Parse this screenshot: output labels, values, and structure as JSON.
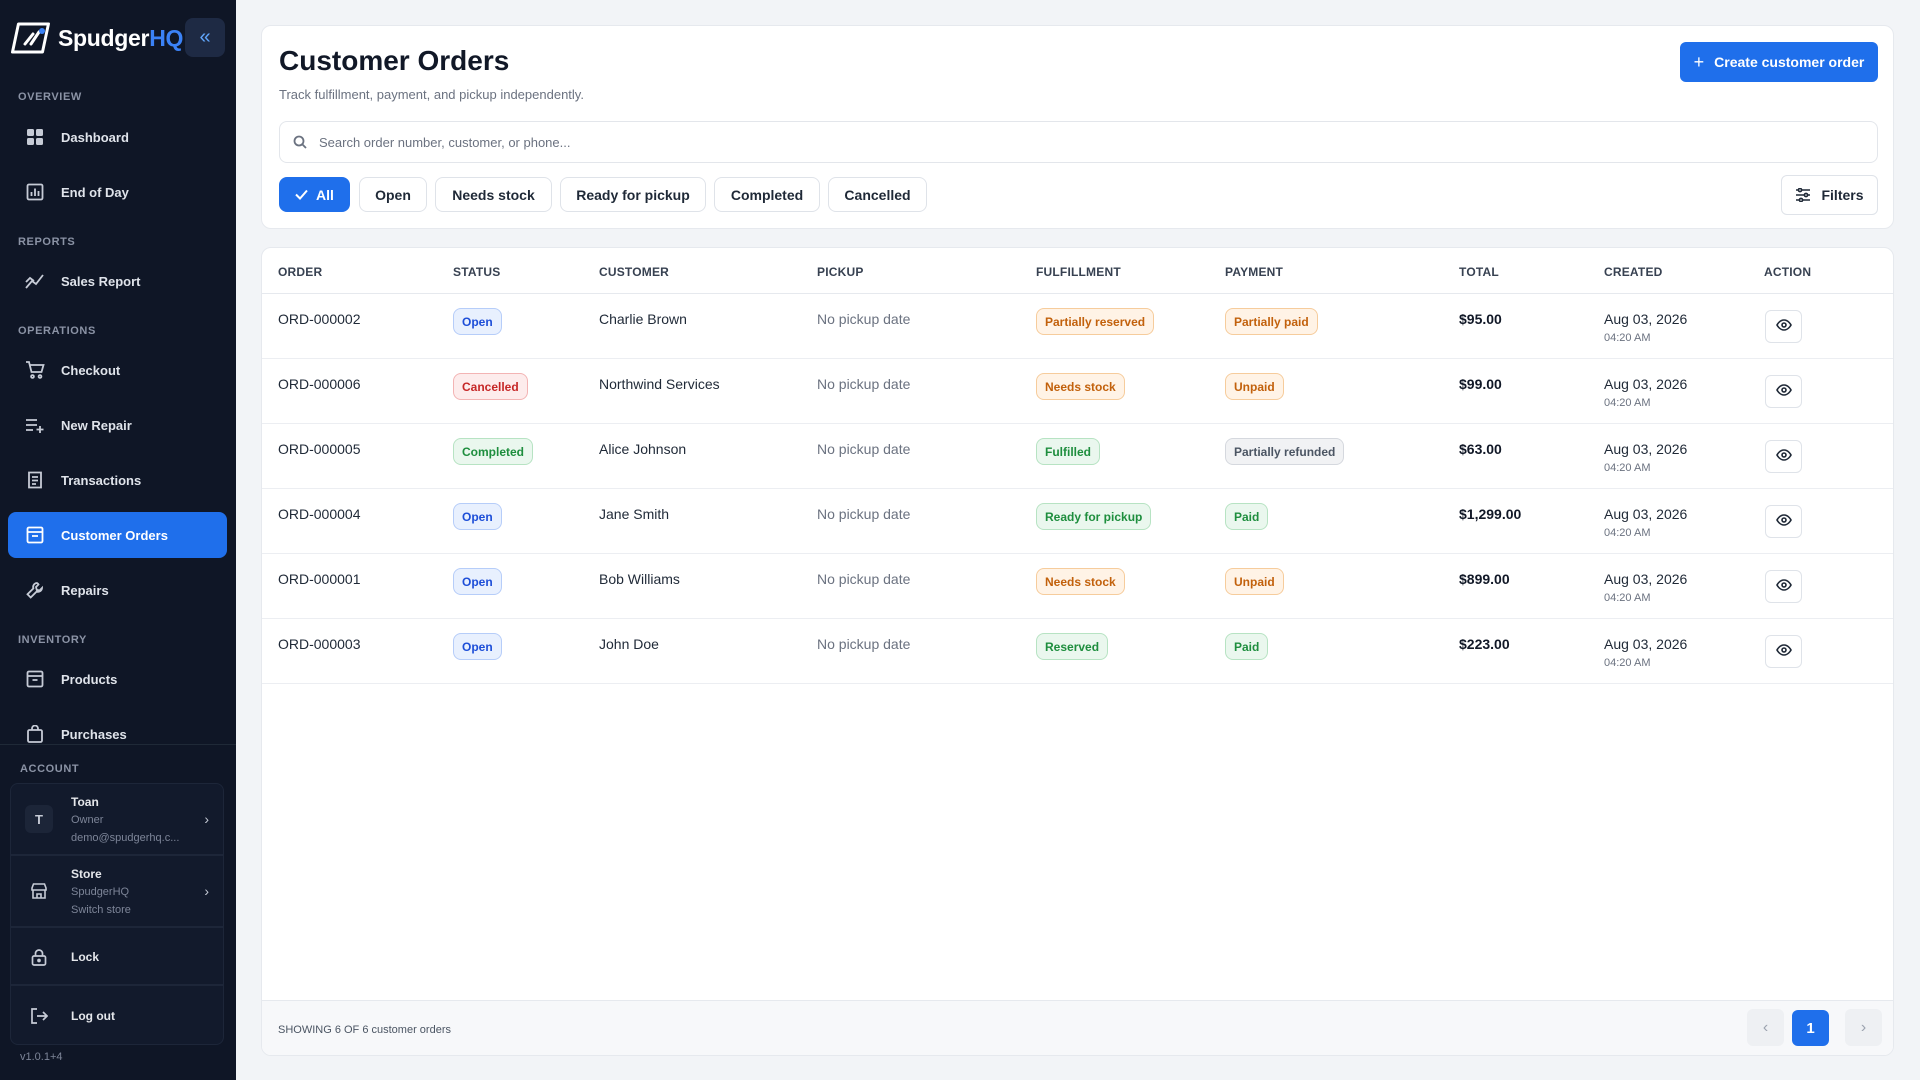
{
  "brand": {
    "name_main": "Spudger",
    "name_accent": "HQ"
  },
  "sidebar": {
    "sections": {
      "overview": "OVERVIEW",
      "reports": "REPORTS",
      "operations": "OPERATIONS",
      "inventory": "INVENTORY",
      "account": "ACCOUNT"
    },
    "items": [
      {
        "label": "Dashboard",
        "icon": "dashboard-icon"
      },
      {
        "label": "End of Day",
        "icon": "chart-icon"
      },
      {
        "label": "Sales Report",
        "icon": "trend-icon"
      },
      {
        "label": "Checkout",
        "icon": "cart-icon"
      },
      {
        "label": "New Repair",
        "icon": "list-plus-icon"
      },
      {
        "label": "Transactions",
        "icon": "receipt-icon"
      },
      {
        "label": "Customer Orders",
        "icon": "orders-icon",
        "active": true
      },
      {
        "label": "Repairs",
        "icon": "wrench-icon"
      },
      {
        "label": "Products",
        "icon": "box-icon"
      },
      {
        "label": "Purchases",
        "icon": "bag-icon"
      }
    ],
    "account": {
      "user": {
        "initial": "T",
        "name": "Toan",
        "role": "Owner",
        "email": "demo@spudgerhq.c..."
      },
      "store": {
        "title": "Store",
        "name": "SpudgerHQ",
        "action": "Switch store"
      },
      "lock": "Lock",
      "logout": "Log out"
    },
    "version": "v1.0.1+4"
  },
  "header": {
    "title": "Customer Orders",
    "subtitle": "Track fulfillment, payment, and pickup independently.",
    "create_label": "Create customer order",
    "search_placeholder": "Search order number, customer, or phone...",
    "filters_label": "Filters",
    "chips": [
      "All",
      "Open",
      "Needs stock",
      "Ready for pickup",
      "Completed",
      "Cancelled"
    ],
    "active_chip": "All"
  },
  "table": {
    "columns": [
      "ORDER",
      "STATUS",
      "CUSTOMER",
      "PICKUP",
      "FULFILLMENT",
      "PAYMENT",
      "TOTAL",
      "CREATED",
      "ACTION"
    ],
    "rows": [
      {
        "order": "ORD-000002",
        "status": "Open",
        "customer": "Charlie Brown",
        "pickup": "No pickup date",
        "fulfillment": "Partially reserved",
        "payment": "Partially paid",
        "total": "$95.00",
        "created_date": "Aug 03, 2026",
        "created_time": "04:20 AM"
      },
      {
        "order": "ORD-000006",
        "status": "Cancelled",
        "customer": "Northwind Services",
        "pickup": "No pickup date",
        "fulfillment": "Needs stock",
        "payment": "Unpaid",
        "total": "$99.00",
        "created_date": "Aug 03, 2026",
        "created_time": "04:20 AM"
      },
      {
        "order": "ORD-000005",
        "status": "Completed",
        "customer": "Alice Johnson",
        "pickup": "No pickup date",
        "fulfillment": "Fulfilled",
        "payment": "Partially refunded",
        "total": "$63.00",
        "created_date": "Aug 03, 2026",
        "created_time": "04:20 AM"
      },
      {
        "order": "ORD-000004",
        "status": "Open",
        "customer": "Jane Smith",
        "pickup": "No pickup date",
        "fulfillment": "Ready for pickup",
        "payment": "Paid",
        "total": "$1,299.00",
        "created_date": "Aug 03, 2026",
        "created_time": "04:20 AM"
      },
      {
        "order": "ORD-000001",
        "status": "Open",
        "customer": "Bob Williams",
        "pickup": "No pickup date",
        "fulfillment": "Needs stock",
        "payment": "Unpaid",
        "total": "$899.00",
        "created_date": "Aug 03, 2026",
        "created_time": "04:20 AM"
      },
      {
        "order": "ORD-000003",
        "status": "Open",
        "customer": "John Doe",
        "pickup": "No pickup date",
        "fulfillment": "Reserved",
        "payment": "Paid",
        "total": "$223.00",
        "created_date": "Aug 03, 2026",
        "created_time": "04:20 AM"
      }
    ],
    "footer_text": "SHOWING 6 OF 6 customer orders",
    "page": "1"
  },
  "colors": {
    "accent": "#1f6feb",
    "sidebar_bg": "#0f1626",
    "badge_open": "#1d4ed8",
    "badge_cancelled": "#c62828",
    "badge_green": "#1e8e3e",
    "badge_orange": "#c2610c"
  }
}
